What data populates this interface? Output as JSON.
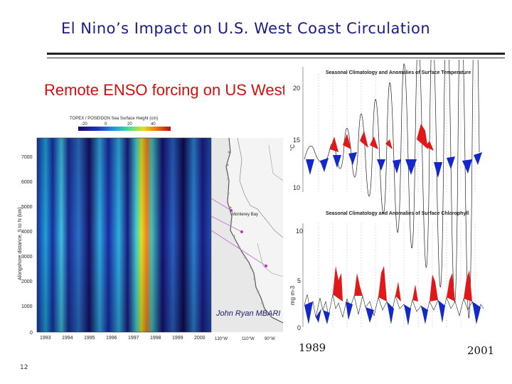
{
  "slide": {
    "title": "El Nino’s Impact on U.S. West Coast Circulation",
    "page_number": "12",
    "year_start": "1989",
    "year_end": "2001"
  },
  "left_figure": {
    "heading": "Remote ENSO forcing on US West Coast",
    "colorbar_title": "TOPEX / POSEIDON Sea Surface Height (cm)",
    "colorbar_ticks": [
      "-20",
      "0",
      "20",
      "40"
    ],
    "ylabel": "Alongshore distance, S to N (km)",
    "yticks": [
      "7000",
      "6000",
      "5000",
      "4000",
      "3000",
      "2000",
      "1000",
      "0"
    ],
    "xticks": [
      "1993",
      "1994",
      "1995",
      "1996",
      "1997",
      "1998",
      "1999",
      "2000"
    ],
    "map_xticks": [
      "130°W",
      "110°W",
      "90°W"
    ],
    "map_label": "Monterey Bay",
    "credit": "John Ryan MBARI"
  },
  "right_figure": {
    "top_title": "Seasonal Climatology and Anomalies of Surface Temperature",
    "top_yticks": [
      "20",
      "15",
      "10"
    ],
    "top_ylabel": "°C",
    "bottom_title": "Seasonal Climatology and Anomalies of Surface Chlorophyll",
    "bottom_yticks": [
      "10",
      "5",
      "0"
    ],
    "bottom_ylabel": "mg m-3"
  },
  "colors": {
    "title": "#1a1a8a",
    "heading_red": "#d01010",
    "positive_anomaly": "#e01818",
    "negative_anomaly": "#1428c8"
  }
}
